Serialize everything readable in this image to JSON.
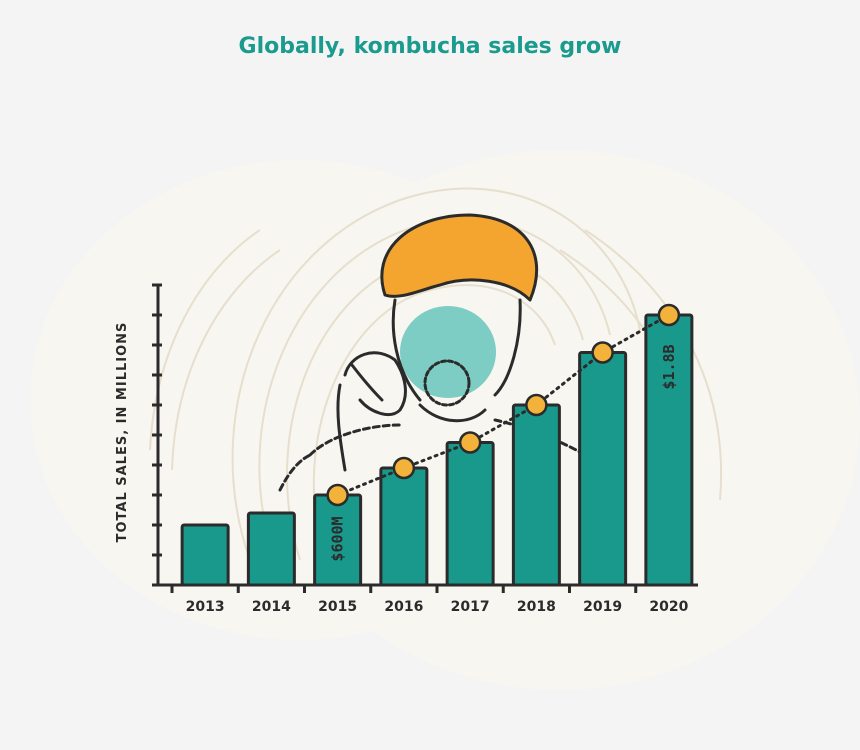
{
  "title": "Globally, kombucha sales grow",
  "colors": {
    "title": "#1a9b8e",
    "bar": "#18998c",
    "outline": "#2b2b2b",
    "marker": "#f3b23a",
    "hair": "#f3a52f",
    "face": "#7ecdc4",
    "blob": "#f8f6f1",
    "background": "#f4f4f4"
  },
  "chart_data": {
    "type": "bar",
    "title": "Globally, kombucha sales grow",
    "ylabel": "TOTAL SALES, IN MILLIONS",
    "xlabel": "",
    "categories": [
      "2013",
      "2014",
      "2015",
      "2016",
      "2017",
      "2018",
      "2019",
      "2020"
    ],
    "series": [
      {
        "values": [
          400,
          480,
          600,
          780,
          950,
          1200,
          1550,
          1800
        ]
      }
    ],
    "ylim": [
      0,
      2000
    ],
    "grid": false,
    "annotations": [
      {
        "category": "2015",
        "text": "$600M"
      },
      {
        "category": "2020",
        "text": "$1.8B"
      }
    ],
    "trend_line": "dotted line with circular markers from 2015 to 2020"
  },
  "icons": [
    "illustrated-person-with-magnifying-glass"
  ]
}
